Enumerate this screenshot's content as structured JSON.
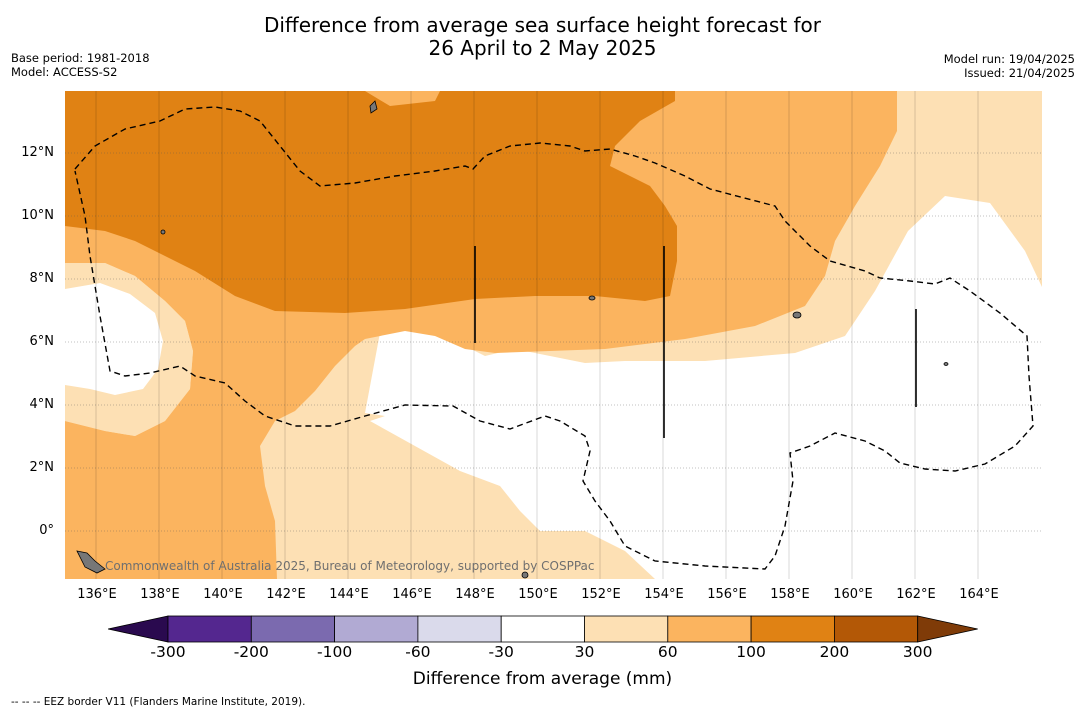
{
  "header": {
    "title_line1": "Difference from average sea surface height forecast for",
    "title_line2": "26 April to 2 May 2025",
    "base_period": "Base period: 1981-2018",
    "model": "Model: ACCESS-S2",
    "model_run": "Model run: 19/04/2025",
    "issued": "Issued: 21/04/2025"
  },
  "map": {
    "lat_labels": [
      "12°N",
      "10°N",
      "8°N",
      "6°N",
      "4°N",
      "2°N",
      "0°"
    ],
    "lon_labels": [
      "136°E",
      "138°E",
      "140°E",
      "142°E",
      "144°E",
      "146°E",
      "148°E",
      "150°E",
      "152°E",
      "154°E",
      "156°E",
      "158°E",
      "160°E",
      "162°E",
      "164°E"
    ],
    "copyright": "Commonwealth of Australia 2025, Bureau of Meteorology, supported by COSPPac"
  },
  "colorbar": {
    "ticks": [
      "-300",
      "-200",
      "-100",
      "-60",
      "-30",
      "30",
      "60",
      "100",
      "200",
      "300"
    ],
    "colors": [
      "#2a0a4f",
      "#54278f",
      "#7b6aaf",
      "#b1aad3",
      "#dadaeb",
      "#ffffff",
      "#fde0b4",
      "#fbb45f",
      "#e08214",
      "#b35806",
      "#7f3b08"
    ],
    "label": "Difference from average (mm)"
  },
  "footnote": "--  --  -- EEZ border V11 (Flanders Marine Institute, 2019)."
}
